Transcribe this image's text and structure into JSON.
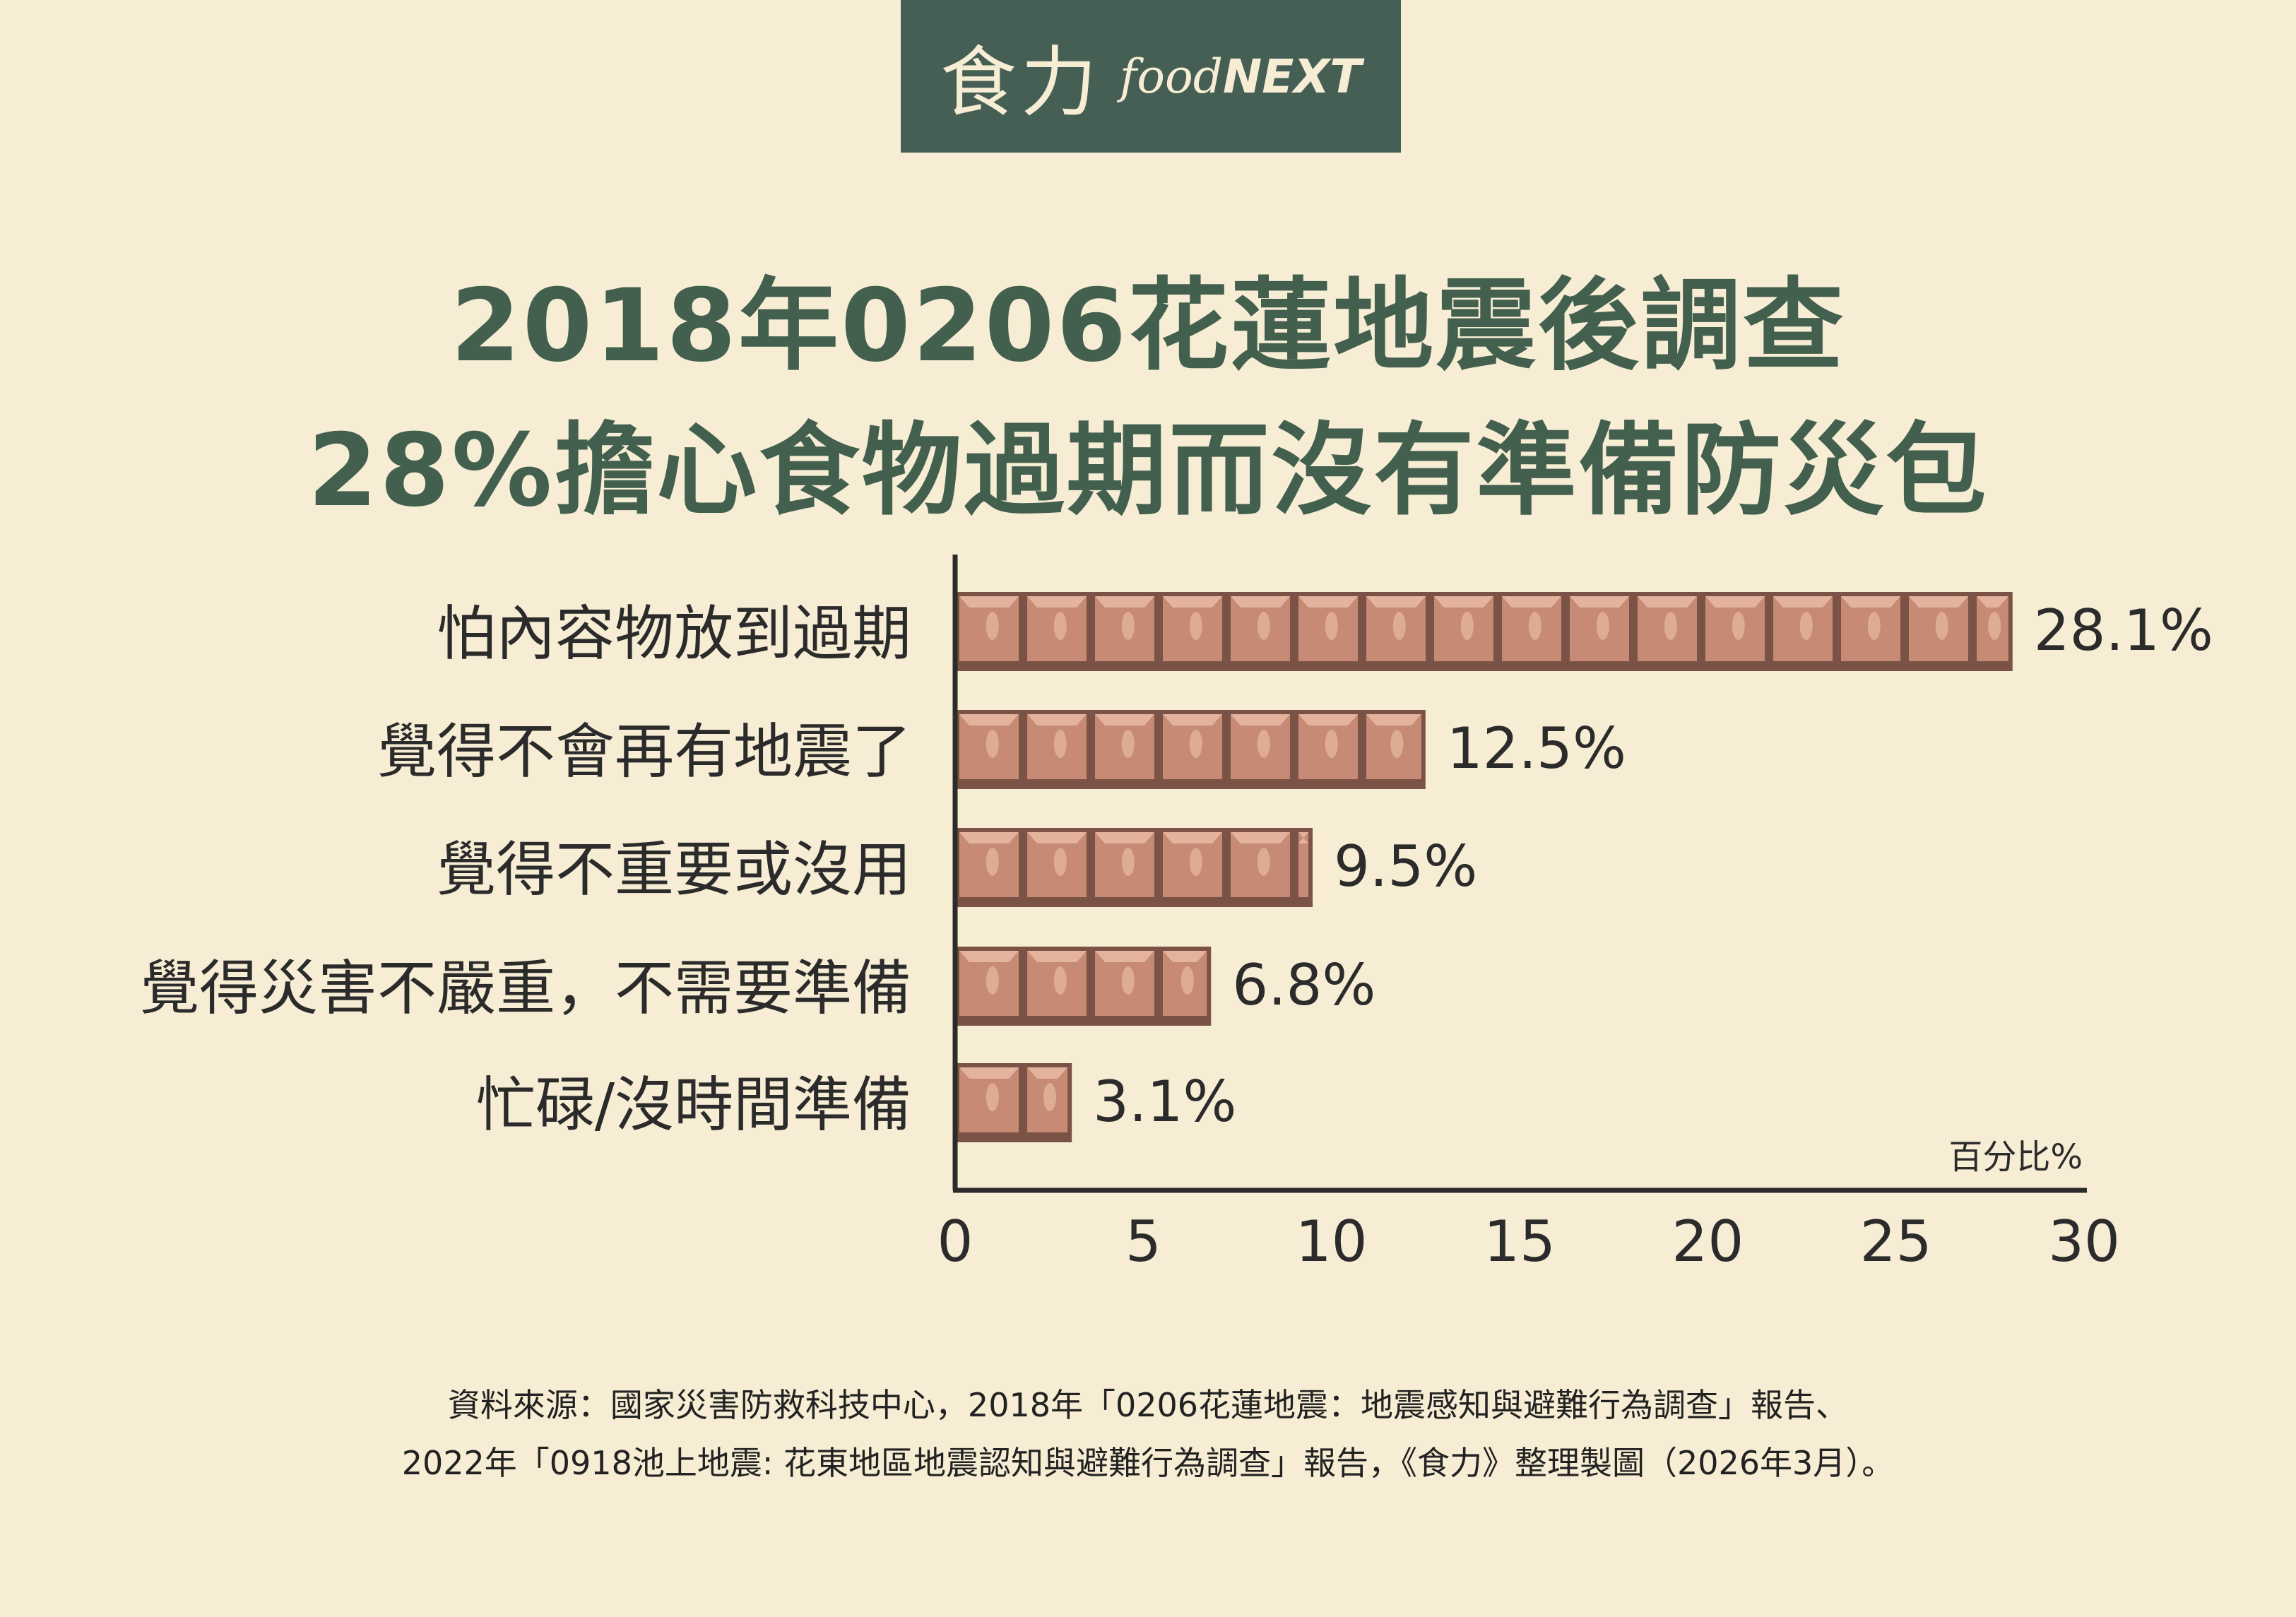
{
  "header": {
    "logo_zh": "食力",
    "logo_en_prefix": "food",
    "logo_en_suffix": "NEXT"
  },
  "title": {
    "line1": "2018年0206花蓮地震後調查",
    "line2": "28%擔心食物過期而沒有準備防災包"
  },
  "chart_data": {
    "type": "bar",
    "orientation": "horizontal",
    "categories": [
      "怕內容物放到過期",
      "覺得不會再有地震了",
      "覺得不重要或沒用",
      "覺得災害不嚴重，不需要準備",
      "忙碌/沒時間準備"
    ],
    "values": [
      28.1,
      12.5,
      9.5,
      6.8,
      3.1
    ],
    "value_labels": [
      "28.1%",
      "12.5%",
      "9.5%",
      "6.8%",
      "3.1%"
    ],
    "xlim": [
      0,
      30
    ],
    "xticks": [
      "0",
      "5",
      "10",
      "15",
      "20",
      "25",
      "30"
    ],
    "xlabel": "百分比%",
    "grid": false,
    "colors": {
      "bar_fill": "#c78a74",
      "bar_dark": "#7a5246",
      "bar_light": "#e3b39d",
      "axis": "#2b2b2b"
    }
  },
  "footnote": {
    "line1": "資料來源：國家災害防救科技中心，2018年「0206花蓮地震：地震感知與避難行為調查」報告、",
    "line2": "2022年「0918池上地震: 花東地區地震認知與避難行為調查」報告，《食力》整理製圖（2026年3月）。"
  },
  "colors": {
    "background": "#f7edd4",
    "brand_green": "#455f55",
    "title_green": "#43604f"
  }
}
